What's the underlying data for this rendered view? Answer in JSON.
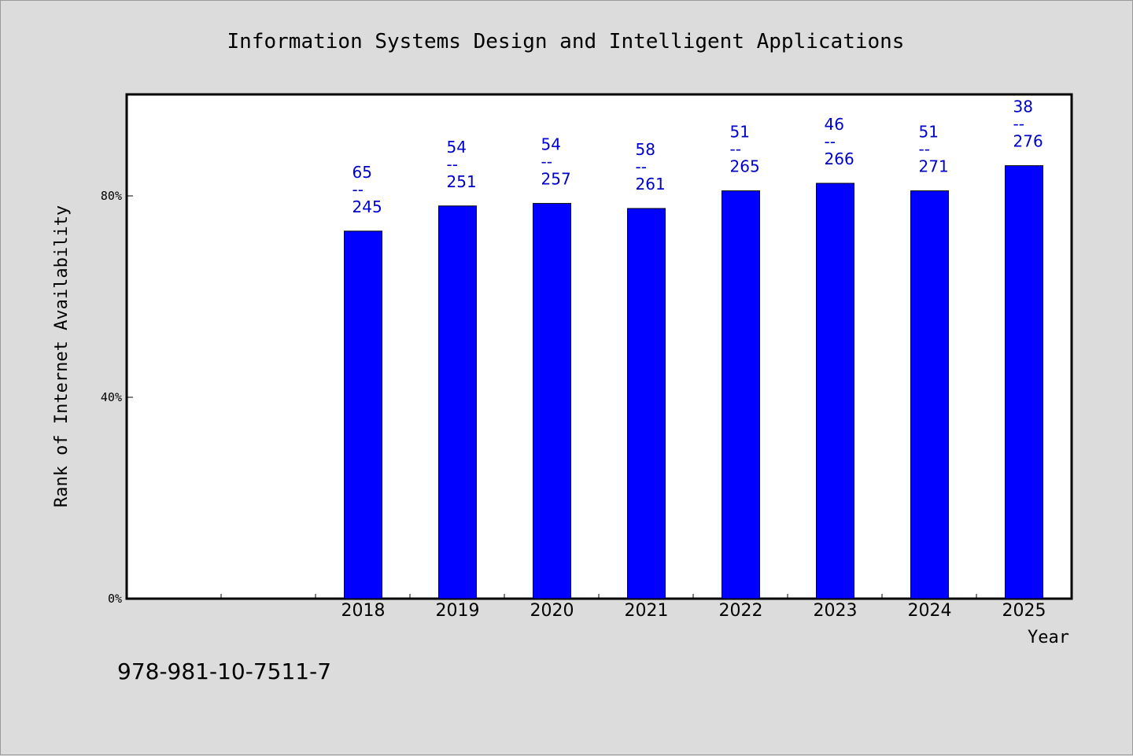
{
  "chart_data": {
    "type": "bar",
    "title": "Information Systems Design and Intelligent Applications",
    "xlabel": "Year",
    "ylabel": "Rank of Internet Availability",
    "categories": [
      "2018",
      "2019",
      "2020",
      "2021",
      "2022",
      "2023",
      "2024",
      "2025"
    ],
    "values": [
      73,
      78,
      78.5,
      77.5,
      81,
      82.5,
      81,
      86
    ],
    "data_labels": [
      {
        "top": "65",
        "sep": "--",
        "bottom": "245"
      },
      {
        "top": "54",
        "sep": "--",
        "bottom": "251"
      },
      {
        "top": "54",
        "sep": "--",
        "bottom": "257"
      },
      {
        "top": "58",
        "sep": "--",
        "bottom": "261"
      },
      {
        "top": "51",
        "sep": "--",
        "bottom": "265"
      },
      {
        "top": "46",
        "sep": "--",
        "bottom": "266"
      },
      {
        "top": "51",
        "sep": "--",
        "bottom": "271"
      },
      {
        "top": "38",
        "sep": "--",
        "bottom": "276"
      }
    ],
    "yticks": [
      {
        "value": 0,
        "label": "0%"
      },
      {
        "value": 40,
        "label": "40%"
      },
      {
        "value": 80,
        "label": "80%"
      }
    ],
    "ylim": [
      0,
      100
    ],
    "x_slots": 10,
    "grid": false,
    "legend": "none",
    "bar_color": "#0000ff",
    "label_color": "#0000cc"
  },
  "footer_text": "978-981-10-7511-7"
}
